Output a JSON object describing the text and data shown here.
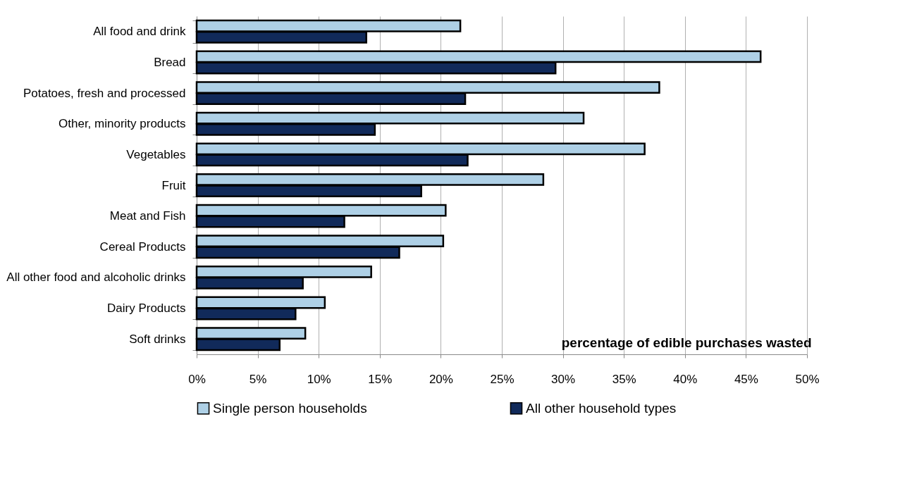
{
  "chart_data": {
    "type": "bar",
    "orientation": "horizontal",
    "xlabel": "percentage of edible purchases wasted",
    "categories": [
      "All food and drink",
      "Bread",
      "Potatoes, fresh and processed",
      "Other, minority products",
      "Vegetables",
      "Fruit",
      "Meat and Fish",
      "Cereal Products",
      "All other food and alcoholic drinks",
      "Dairy Products",
      "Soft drinks"
    ],
    "series": [
      {
        "name": "Single person households",
        "color": "#aed0e6",
        "values": [
          21.6,
          46.2,
          37.9,
          31.7,
          36.7,
          28.4,
          20.4,
          20.2,
          14.3,
          10.5,
          8.9
        ]
      },
      {
        "name": "All other household types",
        "color": "#112a5a",
        "values": [
          13.9,
          29.4,
          22.0,
          14.6,
          22.2,
          18.4,
          12.1,
          16.6,
          8.7,
          8.1,
          6.8
        ]
      }
    ],
    "xlim": [
      0,
      50
    ],
    "xticks": [
      {
        "value": 0,
        "label": "0%"
      },
      {
        "value": 5,
        "label": "5%"
      },
      {
        "value": 10,
        "label": "10%"
      },
      {
        "value": 15,
        "label": "15%"
      },
      {
        "value": 20,
        "label": "20%"
      },
      {
        "value": 25,
        "label": "25%"
      },
      {
        "value": 30,
        "label": "30%"
      },
      {
        "value": 35,
        "label": "35%"
      },
      {
        "value": 40,
        "label": "40%"
      },
      {
        "value": 45,
        "label": "45%"
      },
      {
        "value": 50,
        "label": "50%"
      }
    ],
    "grid": "x",
    "legend": "bottom"
  }
}
